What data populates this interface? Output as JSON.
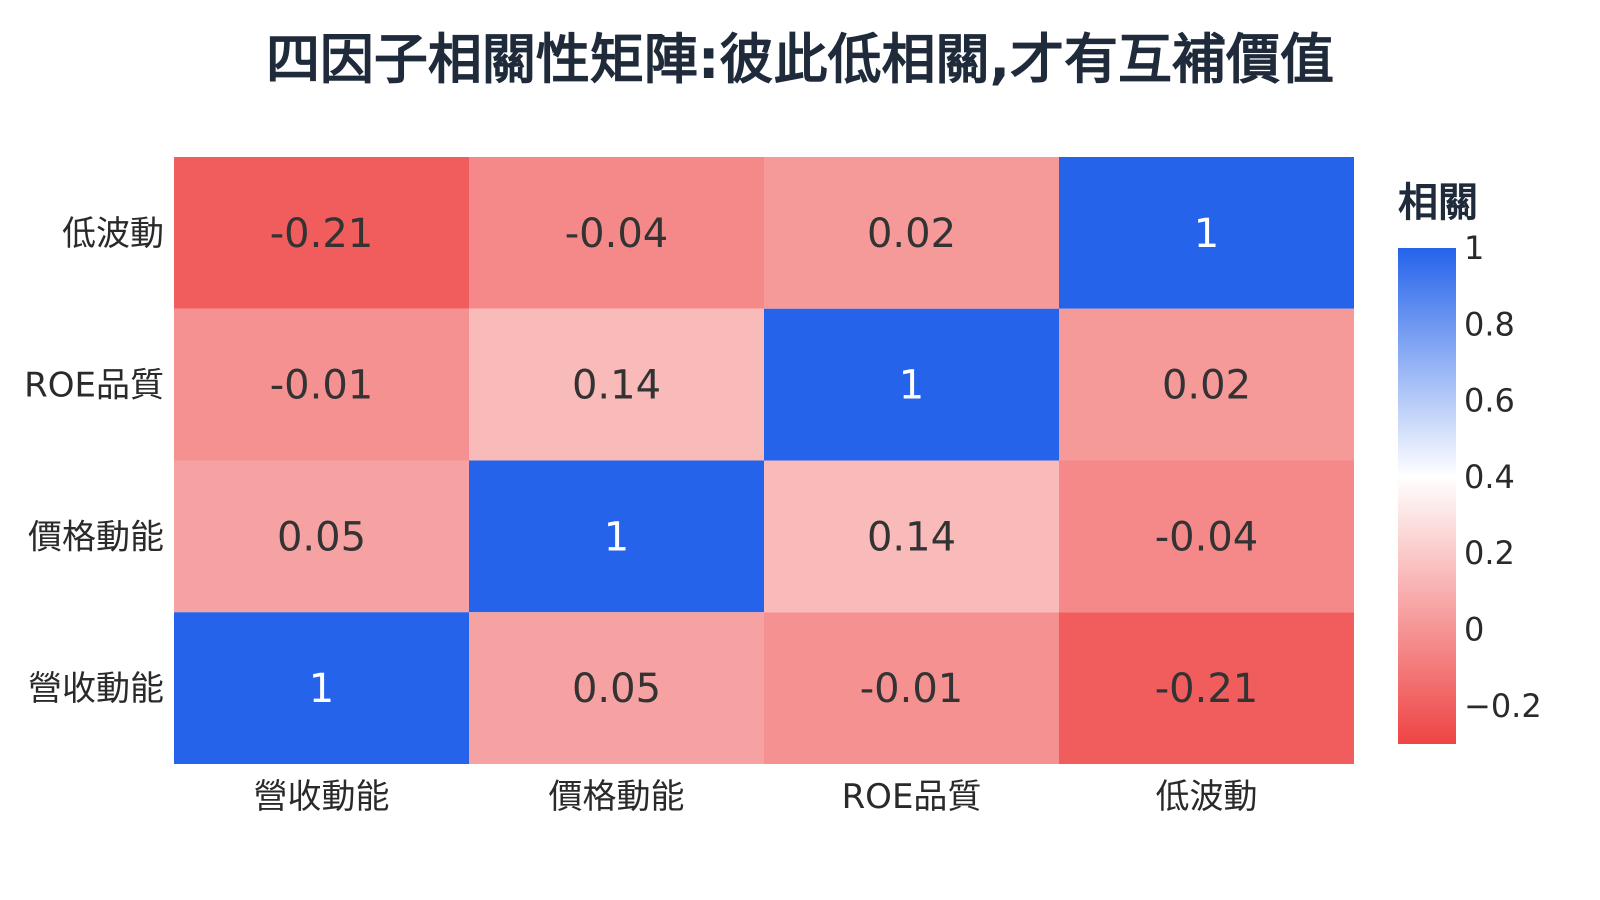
{
  "chart_data": {
    "type": "heatmap",
    "title": "四因子相關性矩陣:彼此低相關,才有互補價值",
    "x_categories": [
      "營收動能",
      "價格動能",
      "ROE品質",
      "低波動"
    ],
    "y_categories": [
      "低波動",
      "ROE品質",
      "價格動能",
      "營收動能"
    ],
    "values": [
      [
        -0.21,
        -0.04,
        0.02,
        1
      ],
      [
        -0.01,
        0.14,
        1,
        0.02
      ],
      [
        0.05,
        1,
        0.14,
        -0.04
      ],
      [
        1,
        0.05,
        -0.01,
        -0.21
      ]
    ],
    "value_labels": [
      [
        "-0.21",
        "-0.04",
        "0.02",
        "1"
      ],
      [
        "-0.01",
        "0.14",
        "1",
        "0.02"
      ],
      [
        "0.05",
        "1",
        "0.14",
        "-0.04"
      ],
      [
        "1",
        "0.05",
        "-0.01",
        "-0.21"
      ]
    ],
    "colorbar": {
      "title": "相關",
      "range": [
        -0.3,
        1
      ],
      "ticks": [
        1,
        0.8,
        0.6,
        0.4,
        0.2,
        0,
        -0.2
      ],
      "tick_labels": [
        "1",
        "0.8",
        "0.6",
        "0.4",
        "0.2",
        "0",
        "−0.2"
      ],
      "colors": [
        "#ef4444",
        "#ffffff",
        "#2563eb"
      ],
      "placement": "right"
    }
  }
}
